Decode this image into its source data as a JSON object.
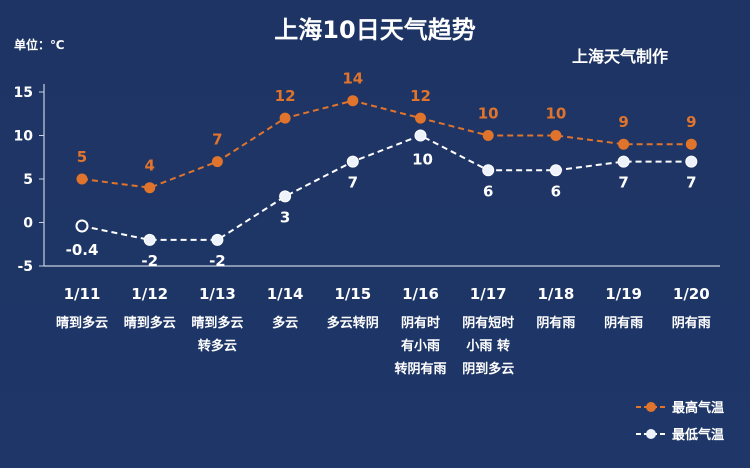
{
  "chart_data": {
    "type": "line",
    "title": "上海10日天气趋势",
    "unit_label": "单位：℃",
    "source_label": "上海天气制作",
    "categories": [
      "1/11",
      "1/12",
      "1/13",
      "1/14",
      "1/15",
      "1/16",
      "1/17",
      "1/18",
      "1/19",
      "1/20"
    ],
    "weather": [
      [
        "晴到多云"
      ],
      [
        "晴到多云"
      ],
      [
        "晴到多云",
        "转多云"
      ],
      [
        "多云"
      ],
      [
        "多云转阴"
      ],
      [
        "阴有时",
        "有小雨",
        "转阴有雨"
      ],
      [
        "阴有短时",
        "小雨 转",
        "阴到多云"
      ],
      [
        "阴有雨"
      ],
      [
        "阴有雨"
      ],
      [
        "阴有雨"
      ]
    ],
    "series": [
      {
        "name": "最高气温",
        "values": [
          5,
          4,
          7,
          12,
          14,
          12,
          10,
          10,
          9,
          9
        ],
        "labels": [
          "5",
          "4",
          "7",
          "12",
          "14",
          "12",
          "10",
          "10",
          "9",
          "9"
        ],
        "color": "#e0742c",
        "marker": "filled"
      },
      {
        "name": "最低气温",
        "values": [
          -0.4,
          -2,
          -2,
          3,
          7,
          10,
          6,
          6,
          7,
          7
        ],
        "labels": [
          "-0.4",
          "-2",
          "-2",
          "3",
          "7",
          "10",
          "6",
          "6",
          "7",
          "7"
        ],
        "color": "#ffffff",
        "marker": "mixed"
      }
    ],
    "ylim": [
      -5,
      15
    ],
    "yticks": [
      -5,
      0,
      5,
      10,
      15
    ],
    "ytick_labels": [
      "-5",
      "0",
      "5",
      "10",
      "15"
    ],
    "grid": false,
    "legend_position": "bottom-right"
  }
}
